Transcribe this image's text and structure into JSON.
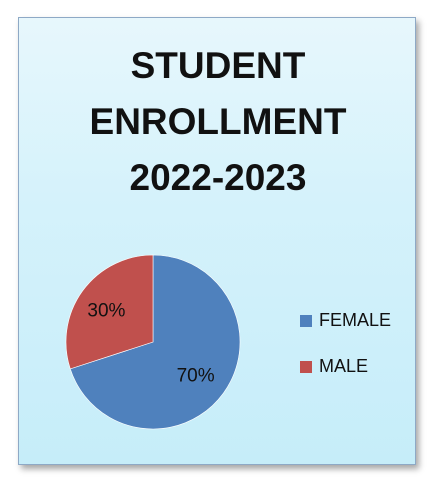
{
  "chart_data": {
    "type": "pie",
    "title_lines": [
      "STUDENT",
      "ENROLLMENT",
      "2022-2023"
    ],
    "slices": [
      {
        "name": "FEMALE",
        "value": 70,
        "label": "70%",
        "color": "#4f81bd"
      },
      {
        "name": "MALE",
        "value": 30,
        "label": "30%",
        "color": "#c0504d"
      }
    ],
    "legend": {
      "placement": "right",
      "entries": [
        "FEMALE",
        "MALE"
      ]
    }
  }
}
